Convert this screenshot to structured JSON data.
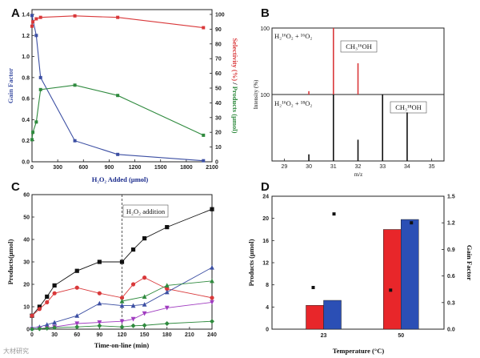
{
  "panels": {
    "A": {
      "letter": "A",
      "xlabel": "H₂O₂ Added (µmol)",
      "ylabel_left": "Gain Factor",
      "ylabel_right_red": "Selectivity (%)",
      "ylabel_right_sep": " / ",
      "ylabel_right_green": "Products (µmol)",
      "xticks": [
        "0",
        "300",
        "600",
        "900",
        "1200",
        "1500",
        "1800",
        "2100"
      ],
      "yticks_left": [
        "0.0",
        "0.2",
        "0.4",
        "0.6",
        "0.8",
        "1.0",
        "1.2",
        "1.4"
      ],
      "yticks_right": [
        "0",
        "10",
        "20",
        "30",
        "40",
        "50",
        "60",
        "70",
        "80",
        "90",
        "100"
      ]
    },
    "B": {
      "letter": "B",
      "xlabel": "m/z",
      "ylabel": "Intensity (%)",
      "xticks": [
        "29",
        "30",
        "31",
        "32",
        "33",
        "34",
        "35"
      ],
      "top_ytick": "100",
      "bottom_ytick": "100",
      "top_formula": "H₂¹⁶O₂ + ¹⁶O₂",
      "top_product": "CH₃¹⁶OH",
      "bottom_formula": "H₂¹⁶O₂ + ¹⁸O₂",
      "bottom_product": "CH₃¹⁸OH"
    },
    "C": {
      "letter": "C",
      "xlabel": "Time-on-line (min)",
      "ylabel": "Products(µmol)",
      "annotation": "H₂O₂ addition",
      "xticks": [
        "0",
        "30",
        "60",
        "90",
        "120",
        "150",
        "180",
        "210",
        "240"
      ],
      "yticks": [
        "0",
        "10",
        "20",
        "30",
        "40",
        "50",
        "60"
      ]
    },
    "D": {
      "letter": "D",
      "xlabel": "Temperature (°C)",
      "ylabel_left": "Products (µmol)",
      "ylabel_right": "Gain Factor",
      "categories": [
        "23",
        "50"
      ],
      "yticks_left": [
        "0",
        "4",
        "8",
        "12",
        "16",
        "20",
        "24"
      ],
      "yticks_right": [
        "0.0",
        "0.3",
        "0.6",
        "0.9",
        "1.2",
        "1.5"
      ]
    }
  },
  "watermark": "大材研究",
  "colors": {
    "blue": "#3c4fa3",
    "red": "#d9383a",
    "green": "#2f8a3e",
    "black": "#111111",
    "violet": "#a03cc0",
    "bar_red": "#e8262a",
    "bar_blue": "#2b4fb5"
  },
  "chart_data": [
    {
      "panel": "A",
      "type": "line",
      "x_range": [
        0,
        2100
      ],
      "y_left_range": [
        0,
        1.4
      ],
      "y_right_range": [
        0,
        100
      ],
      "series": [
        {
          "axis": "left",
          "color": "blue",
          "x": [
            0,
            50,
            100,
            500,
            1000,
            2000
          ],
          "y": [
            1.39,
            1.2,
            0.8,
            0.2,
            0.07,
            0.01
          ]
        },
        {
          "axis": "right",
          "color": "red",
          "x": [
            0,
            10,
            50,
            100,
            500,
            1000,
            2000
          ],
          "y": [
            92,
            95,
            97,
            98,
            99,
            98,
            91
          ]
        },
        {
          "axis": "right",
          "color": "green",
          "x": [
            0,
            10,
            50,
            100,
            500,
            1000,
            2000
          ],
          "y": [
            15,
            20,
            27,
            49,
            52,
            45,
            18
          ]
        }
      ]
    },
    {
      "panel": "B",
      "type": "bar",
      "x_range": [
        28.5,
        35.5
      ],
      "subplots": [
        {
          "position": "top",
          "color": "red",
          "x": [
            30,
            31,
            32
          ],
          "y": [
            5,
            100,
            47
          ]
        },
        {
          "position": "bottom",
          "color": "black",
          "x": [
            30,
            31,
            32,
            33,
            34
          ],
          "y": [
            10,
            100,
            32,
            100,
            73
          ]
        }
      ]
    },
    {
      "panel": "C",
      "type": "line",
      "x_range": [
        0,
        240
      ],
      "y_range": [
        0,
        60
      ],
      "marker_x": 120,
      "series": [
        {
          "color": "black",
          "marker": "square",
          "x": [
            0,
            10,
            20,
            30,
            60,
            90,
            120,
            135,
            150,
            180,
            240
          ],
          "y": [
            6,
            10,
            14.5,
            19.5,
            26,
            30,
            30,
            35.5,
            40.5,
            45.5,
            53.5
          ]
        },
        {
          "color": "red",
          "marker": "circle",
          "x": [
            0,
            10,
            20,
            30,
            60,
            90,
            120,
            135,
            150,
            180,
            240
          ],
          "y": [
            6,
            9,
            12,
            16,
            18.5,
            16,
            14,
            20,
            23,
            18,
            14
          ]
        },
        {
          "color": "blue",
          "marker": "triangle-up",
          "x": [
            0,
            10,
            20,
            30,
            60,
            90,
            120,
            135,
            150,
            180,
            240
          ],
          "y": [
            0.5,
            1,
            2,
            3,
            6,
            11.5,
            10.5,
            10.5,
            11,
            16.5,
            27.5
          ]
        },
        {
          "color": "green",
          "marker": "triangle-up",
          "x": [
            120,
            150,
            180,
            240
          ],
          "y": [
            12.5,
            14.5,
            19.5,
            21.5
          ]
        },
        {
          "color": "violet",
          "marker": "triangle-down",
          "x": [
            0,
            10,
            20,
            30,
            60,
            90,
            120,
            135,
            150,
            180,
            240
          ],
          "y": [
            0,
            0.3,
            0.5,
            1,
            2.5,
            3,
            3.5,
            4.5,
            7,
            9.5,
            12
          ]
        },
        {
          "color": "green",
          "marker": "diamond",
          "x": [
            0,
            10,
            20,
            30,
            60,
            90,
            120,
            135,
            150,
            180,
            240
          ],
          "y": [
            0,
            0.2,
            0.4,
            0.7,
            1,
            1.5,
            1,
            1.5,
            1.7,
            2.5,
            3.5
          ]
        }
      ]
    },
    {
      "panel": "D",
      "type": "bar",
      "categories": [
        "23",
        "50"
      ],
      "y_left_range": [
        0,
        24
      ],
      "y_right_range": [
        0,
        1.5
      ],
      "series": [
        {
          "color": "bar_red",
          "values": [
            4.3,
            18.0
          ]
        },
        {
          "color": "bar_blue",
          "values": [
            5.2,
            19.8
          ]
        }
      ],
      "gain_points": [
        {
          "category": "23",
          "values": [
            0.47,
            1.3
          ]
        },
        {
          "category": "50",
          "values": [
            0.44,
            1.2
          ]
        }
      ]
    }
  ]
}
